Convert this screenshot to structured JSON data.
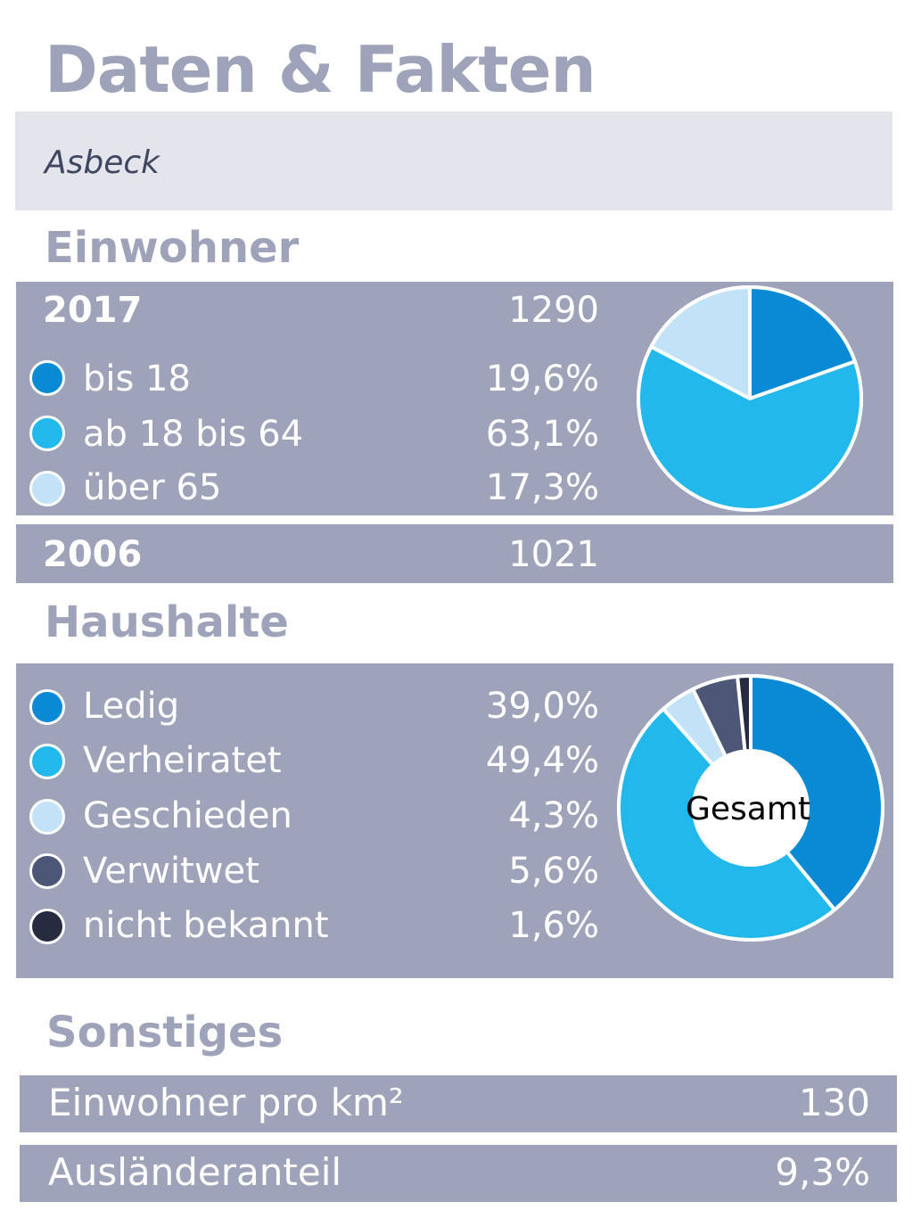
{
  "header": {
    "title": "Daten & Fakten",
    "place": "Asbeck"
  },
  "colors": {
    "panel": "#9fa3ba",
    "place_bar": "#e4e5ec",
    "dark_blue": "#0a8ad4",
    "light_blue": "#22b8ec",
    "pale_blue": "#c2e3f7",
    "slate": "#4c5676",
    "navy": "#262b3f"
  },
  "einwohner": {
    "heading": "Einwohner",
    "year_current": "2017",
    "total_current": "1290",
    "year_past": "2006",
    "total_past": "1021"
  },
  "haushalte": {
    "heading": "Haushalte"
  },
  "sonstiges": {
    "heading": "Sonstiges",
    "rows": [
      {
        "label": "Einwohner pro km²",
        "value": "130"
      },
      {
        "label": "Ausländeranteil",
        "value": "9,3%"
      }
    ]
  },
  "chart_data": [
    {
      "type": "pie",
      "categories": [
        "bis 18",
        "ab 18 bis 64",
        "über 65"
      ],
      "values": [
        19.6,
        63.1,
        17.3
      ],
      "value_labels": [
        "19,6%",
        "63,1%",
        "17,3%"
      ],
      "colors": [
        "#0a8ad4",
        "#22b8ec",
        "#c2e3f7"
      ]
    },
    {
      "type": "pie",
      "categories": [
        "Ledig",
        "Verheiratet",
        "Geschieden",
        "Verwitwet",
        "nicht bekannt"
      ],
      "values": [
        39.0,
        49.4,
        4.3,
        5.6,
        1.6
      ],
      "value_labels": [
        "39,0%",
        "49,4%",
        "4,3%",
        "5,6%",
        "1,6%"
      ],
      "colors": [
        "#0a8ad4",
        "#22b8ec",
        "#c2e3f7",
        "#4c5676",
        "#262b3f"
      ],
      "center_label": "Gesamt"
    }
  ]
}
